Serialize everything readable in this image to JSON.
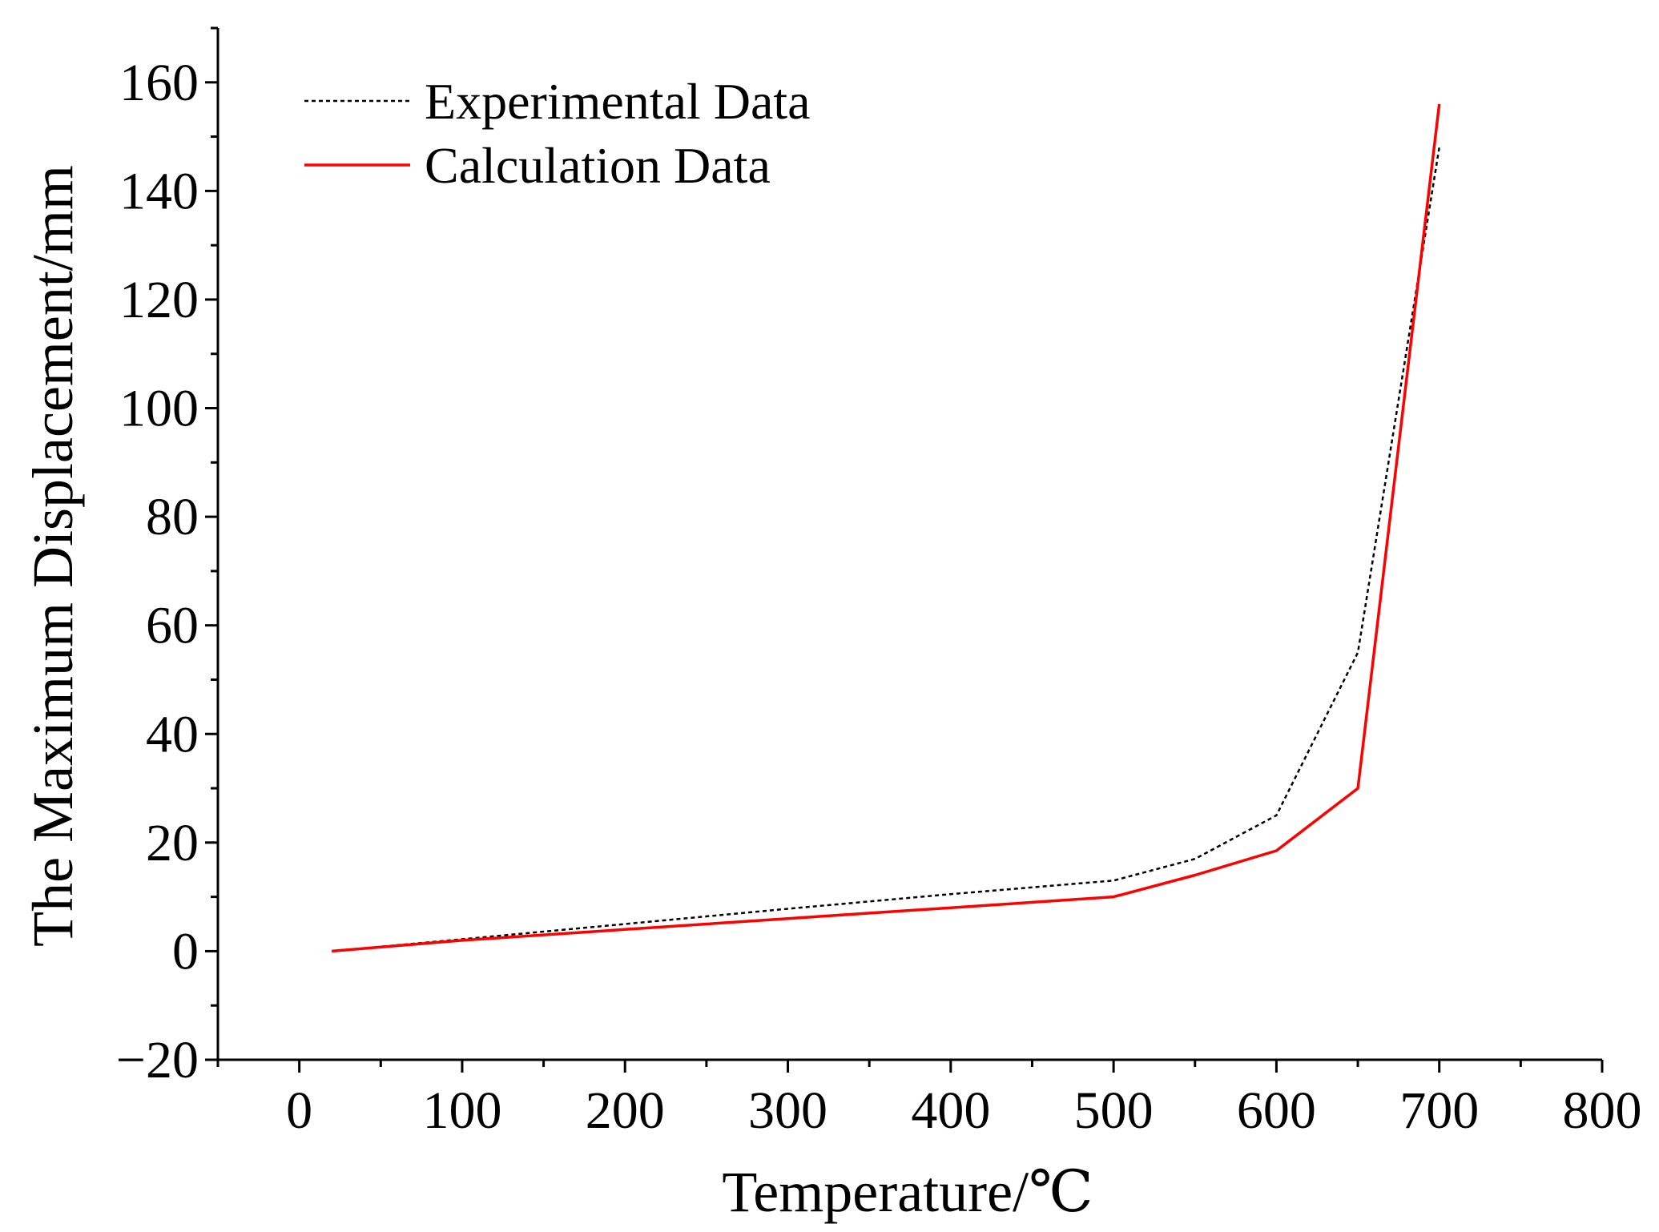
{
  "chart_data": {
    "type": "line",
    "title": "",
    "xlabel": "Temperature/℃",
    "ylabel": "The Maximum Displacement/mm",
    "xlim": [
      -50,
      800
    ],
    "ylim": [
      -20,
      170
    ],
    "xticks": [
      0,
      100,
      200,
      300,
      400,
      500,
      600,
      700,
      800
    ],
    "xtick_labels": [
      "0",
      "100",
      "200",
      "300",
      "400",
      "500",
      "600",
      "700",
      "800"
    ],
    "yticks": [
      -20,
      0,
      20,
      40,
      60,
      80,
      100,
      120,
      140,
      160
    ],
    "ytick_labels": [
      "−20",
      "0",
      "20",
      "40",
      "60",
      "80",
      "100",
      "120",
      "140",
      "160"
    ],
    "x_minor_step": 50,
    "y_minor_step": 10,
    "grid": false,
    "legend_position": "top-left",
    "series": [
      {
        "name": "Experimental Data",
        "color": "#000000",
        "style": "dotted",
        "x": [
          20,
          100,
          200,
          300,
          400,
          500,
          550,
          600,
          650,
          700
        ],
        "values": [
          0,
          2.2,
          5,
          7.8,
          10.5,
          13,
          17,
          25,
          55,
          148
        ]
      },
      {
        "name": "Calculation Data",
        "color": "#ff0000",
        "style": "solid",
        "x": [
          20,
          100,
          200,
          300,
          400,
          500,
          550,
          600,
          650,
          700
        ],
        "values": [
          0,
          2,
          4,
          6,
          8,
          10,
          14,
          18.5,
          30,
          156
        ]
      }
    ]
  }
}
